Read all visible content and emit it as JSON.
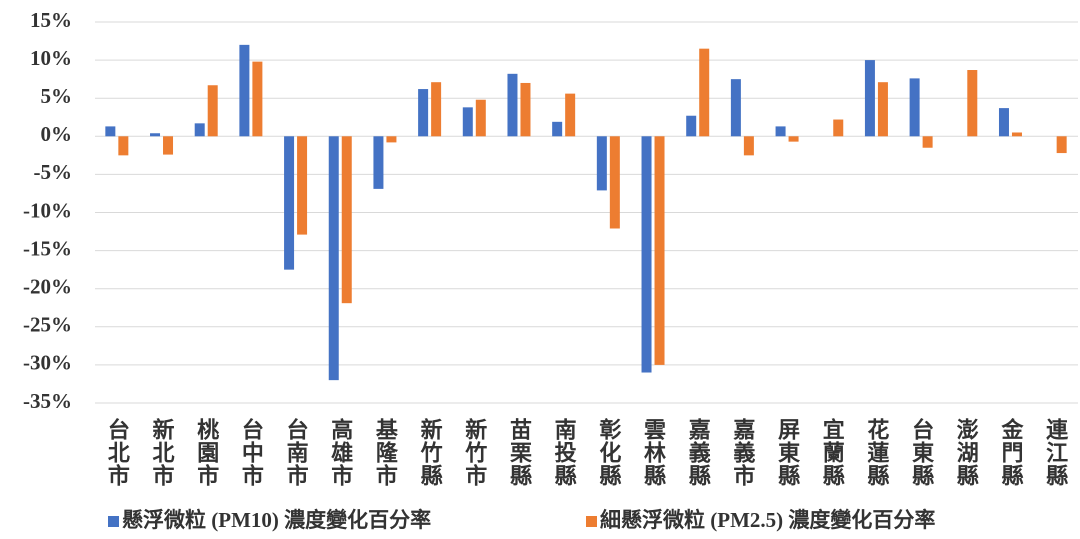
{
  "chart_data": {
    "type": "bar",
    "categories": [
      "台北市",
      "新北市",
      "桃園市",
      "台中市",
      "台南市",
      "高雄市",
      "基隆市",
      "新竹縣",
      "新竹市",
      "苗栗縣",
      "南投縣",
      "彰化縣",
      "雲林縣",
      "嘉義縣",
      "嘉義市",
      "屏東縣",
      "宜蘭縣",
      "花蓮縣",
      "台東縣",
      "澎湖縣",
      "金門縣",
      "連江縣"
    ],
    "series": [
      {
        "name": "懸浮微粒 (PM10) 濃度變化百分率",
        "color": "#4472c4",
        "values": [
          1.3,
          0.4,
          1.7,
          12,
          -17.5,
          -32,
          -6.9,
          6.2,
          3.8,
          8.2,
          1.9,
          -7.1,
          -31,
          2.7,
          7.5,
          1.3,
          null,
          10,
          7.6,
          null,
          3.7,
          null
        ]
      },
      {
        "name": "細懸浮微粒 (PM2.5) 濃度變化百分率",
        "color": "#ed7d31",
        "values": [
          -2.5,
          -2.4,
          6.7,
          9.8,
          -12.9,
          -21.9,
          -0.8,
          7.1,
          4.8,
          7,
          5.6,
          -12.1,
          -30,
          11.5,
          -2.5,
          -0.7,
          2.2,
          7.1,
          -1.5,
          8.7,
          0.5,
          -2.2
        ]
      }
    ],
    "ylim": [
      -35,
      15
    ],
    "yticks": [
      {
        "value": -35,
        "label": "-35%"
      },
      {
        "value": -30,
        "label": "-30%"
      },
      {
        "value": -25,
        "label": "-25%"
      },
      {
        "value": -20,
        "label": "-20%"
      },
      {
        "value": -15,
        "label": "-15%"
      },
      {
        "value": -10,
        "label": "-10%"
      },
      {
        "value": -5,
        "label": "-5%"
      },
      {
        "value": 0,
        "label": "0%"
      },
      {
        "value": 5,
        "label": "5%"
      },
      {
        "value": 10,
        "label": "10%"
      },
      {
        "value": 15,
        "label": "15%"
      }
    ],
    "grid": true,
    "legend": "bottom"
  }
}
